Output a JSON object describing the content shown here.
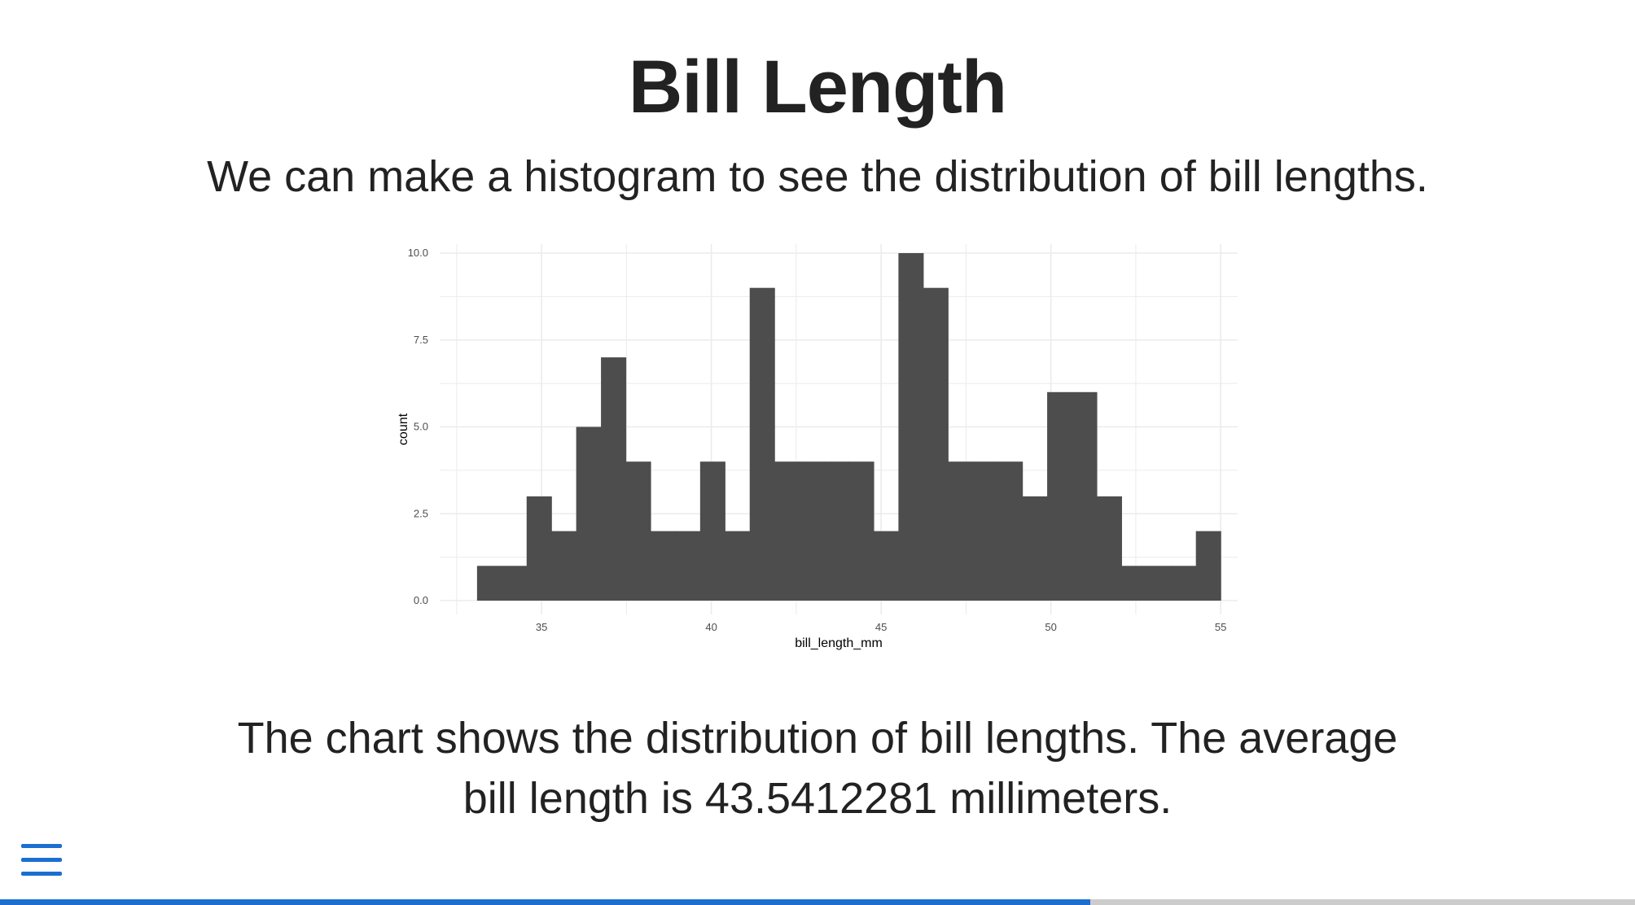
{
  "slide": {
    "title": "Bill Length",
    "subtitle": "We can make a histogram to see the distribution of bill lengths.",
    "caption": "The chart shows the distribution of bill lengths. The average bill length is 43.5412281 millimeters."
  },
  "nav": {
    "menu_icon": "hamburger-menu-icon",
    "progress_fraction": 0.667
  },
  "colors": {
    "bar_fill": "#4d4d4d",
    "grid": "#ebebeb",
    "accent": "#1a6fd1",
    "progress_track": "#cccccc",
    "text": "#222222"
  },
  "chart_data": {
    "type": "bar",
    "histogram": true,
    "xlabel": "bill_length_mm",
    "ylabel": "count",
    "xlim": [
      32.0,
      55.5
    ],
    "ylim": [
      0,
      10
    ],
    "x_ticks": [
      35,
      40,
      45,
      50,
      55
    ],
    "y_ticks": [
      0,
      2.5,
      5,
      7.5,
      10
    ],
    "y_tick_labels": [
      "0.0",
      "2.5",
      "5.0",
      "7.5",
      "10.0"
    ],
    "bin_start": 33.1,
    "bin_width": 0.73,
    "values": [
      1,
      1,
      3,
      2,
      5,
      7,
      4,
      2,
      2,
      4,
      2,
      9,
      4,
      4,
      4,
      4,
      2,
      10,
      9,
      4,
      4,
      4,
      3,
      6,
      6,
      3,
      1,
      1,
      1,
      2
    ],
    "grid": true,
    "legend": "none"
  }
}
